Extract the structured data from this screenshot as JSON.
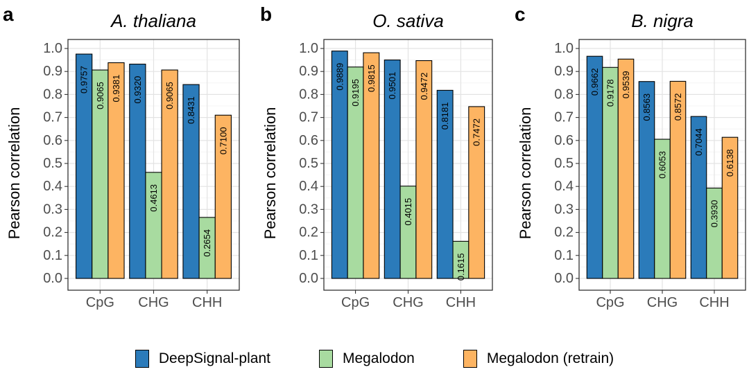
{
  "chart_data": [
    {
      "type": "bar",
      "panel_label": "a",
      "title": "A. thaliana",
      "ylabel": "Pearson correlation",
      "xlabel": "",
      "categories": [
        "CpG",
        "CHG",
        "CHH"
      ],
      "ylim": [
        0,
        1.0
      ],
      "yticks": [
        "0.0",
        "0.1",
        "0.2",
        "0.3",
        "0.4",
        "0.5",
        "0.6",
        "0.7",
        "0.8",
        "0.9",
        "1.0"
      ],
      "grid": true,
      "series": [
        {
          "name": "DeepSignal-plant",
          "values": [
            0.9757,
            0.932,
            0.8431
          ],
          "labels": [
            "0.9757",
            "0.9320",
            "0.8431"
          ]
        },
        {
          "name": "Megalodon",
          "values": [
            0.9065,
            0.4613,
            0.2654
          ],
          "labels": [
            "0.9065",
            "0.4613",
            "0.2654"
          ]
        },
        {
          "name": "Megalodon (retrain)",
          "values": [
            0.9381,
            0.9065,
            0.71
          ],
          "labels": [
            "0.9381",
            "0.9065",
            "0.7100"
          ]
        }
      ]
    },
    {
      "type": "bar",
      "panel_label": "b",
      "title": "O. sativa",
      "ylabel": "Pearson correlation",
      "xlabel": "",
      "categories": [
        "CpG",
        "CHG",
        "CHH"
      ],
      "ylim": [
        0,
        1.0
      ],
      "yticks": [
        "0.0",
        "0.1",
        "0.2",
        "0.3",
        "0.4",
        "0.5",
        "0.6",
        "0.7",
        "0.8",
        "0.9",
        "1.0"
      ],
      "grid": true,
      "series": [
        {
          "name": "DeepSignal-plant",
          "values": [
            0.9889,
            0.9501,
            0.8181
          ],
          "labels": [
            "0.9889",
            "0.9501",
            "0.8181"
          ]
        },
        {
          "name": "Megalodon",
          "values": [
            0.9195,
            0.4015,
            0.1615
          ],
          "labels": [
            "0.9195",
            "0.4015",
            "0.1615"
          ]
        },
        {
          "name": "Megalodon (retrain)",
          "values": [
            0.9815,
            0.9472,
            0.7472
          ],
          "labels": [
            "0.9815",
            "0.9472",
            "0.7472"
          ]
        }
      ]
    },
    {
      "type": "bar",
      "panel_label": "c",
      "title": "B. nigra",
      "ylabel": "Pearson correlation",
      "xlabel": "",
      "categories": [
        "CpG",
        "CHG",
        "CHH"
      ],
      "ylim": [
        0,
        1.0
      ],
      "yticks": [
        "0.0",
        "0.1",
        "0.2",
        "0.3",
        "0.4",
        "0.5",
        "0.6",
        "0.7",
        "0.8",
        "0.9",
        "1.0"
      ],
      "grid": true,
      "series": [
        {
          "name": "DeepSignal-plant",
          "values": [
            0.9662,
            0.8563,
            0.7044
          ],
          "labels": [
            "0.9662",
            "0.8563",
            "0.7044"
          ]
        },
        {
          "name": "Megalodon",
          "values": [
            0.9178,
            0.6053,
            0.393
          ],
          "labels": [
            "0.9178",
            "0.6053",
            "0.3930"
          ]
        },
        {
          "name": "Megalodon (retrain)",
          "values": [
            0.9539,
            0.8572,
            0.6138
          ],
          "labels": [
            "0.9539",
            "0.8572",
            "0.6138"
          ]
        }
      ]
    }
  ],
  "legend": {
    "position": "bottom",
    "items": [
      {
        "label": "DeepSignal-plant",
        "color": "#2b7bba"
      },
      {
        "label": "Megalodon",
        "color": "#a8dba0"
      },
      {
        "label": "Megalodon (retrain)",
        "color": "#fdb462"
      }
    ]
  }
}
